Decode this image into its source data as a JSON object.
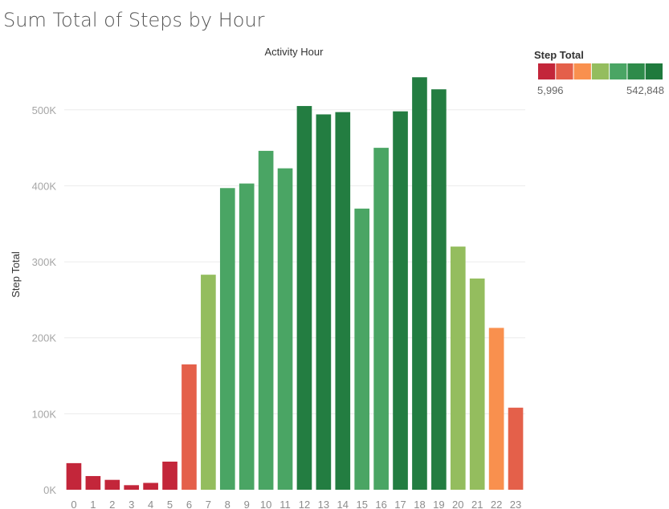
{
  "chart_data": {
    "type": "bar",
    "title": "Sum Total of Steps by Hour",
    "xlabel": "Activity Hour",
    "ylabel": "Step Total",
    "categories": [
      "0",
      "1",
      "2",
      "3",
      "4",
      "5",
      "6",
      "7",
      "8",
      "9",
      "10",
      "11",
      "12",
      "13",
      "14",
      "15",
      "16",
      "17",
      "18",
      "19",
      "20",
      "21",
      "22",
      "23"
    ],
    "values": [
      35000,
      18000,
      13000,
      5996,
      9000,
      37000,
      165000,
      283000,
      397000,
      403000,
      446000,
      423000,
      505000,
      494000,
      497000,
      370000,
      450000,
      498000,
      542848,
      527000,
      320000,
      278000,
      213000,
      108000
    ],
    "ylim": [
      0,
      560000
    ],
    "yticks": [
      0,
      100000,
      200000,
      300000,
      400000,
      500000
    ],
    "ytick_labels": [
      "0K",
      "100K",
      "200K",
      "300K",
      "400K",
      "500K"
    ],
    "grid": true,
    "legend": {
      "title": "Step Total",
      "min_label": "5,996",
      "max_label": "542,848",
      "placement": "top-right",
      "colors": [
        "#c3263a",
        "#e4604a",
        "#f9904e",
        "#94bd5e",
        "#4aa564",
        "#2e8b4a",
        "#1f7a3d"
      ]
    },
    "bar_colors": [
      "#c3263a",
      "#c3263a",
      "#c3263a",
      "#c3263a",
      "#c3263a",
      "#c3263a",
      "#e4604a",
      "#94bd5e",
      "#4aa564",
      "#4aa564",
      "#4aa564",
      "#4aa564",
      "#237d41",
      "#237d41",
      "#237d41",
      "#4aa564",
      "#4aa564",
      "#237d41",
      "#237d41",
      "#237d41",
      "#94bd5e",
      "#94bd5e",
      "#f9904e",
      "#e4604a"
    ]
  }
}
